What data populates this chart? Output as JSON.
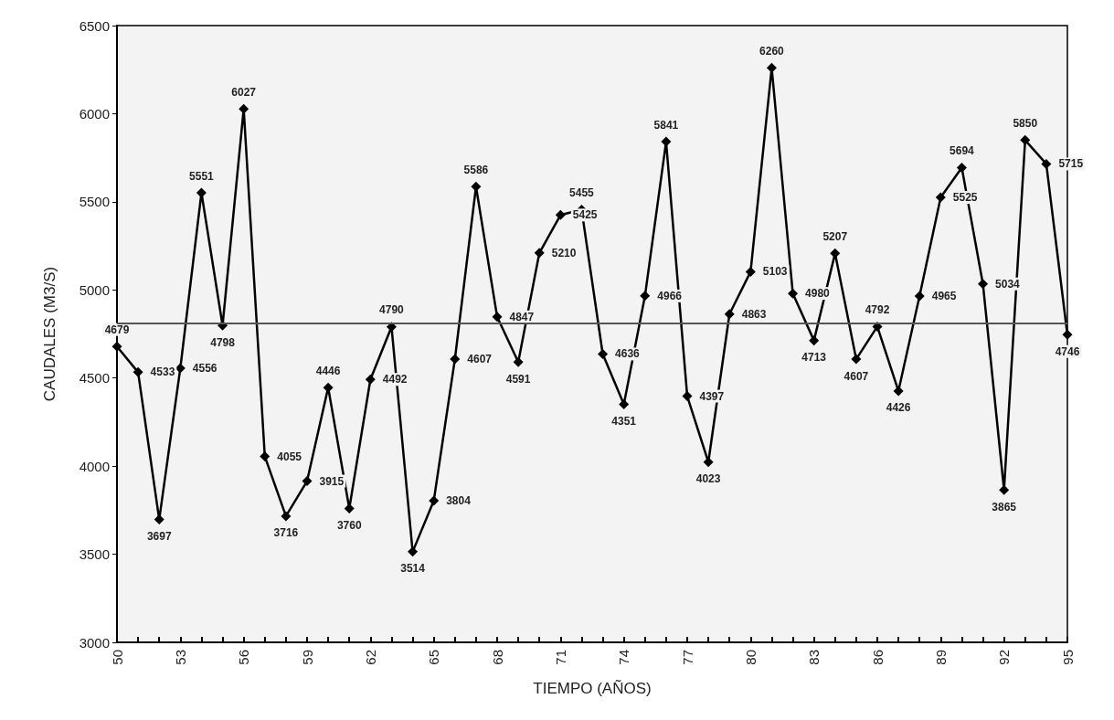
{
  "chart_data": {
    "type": "line",
    "xlabel": "TIEMPO (AÑOS)",
    "ylabel": "CAUDALES (M3/S)",
    "categories": [
      "50",
      null,
      null,
      "53",
      null,
      null,
      "56",
      null,
      null,
      "59",
      null,
      null,
      "62",
      null,
      null,
      "65",
      null,
      null,
      "68",
      null,
      null,
      "71",
      null,
      null,
      "74",
      null,
      null,
      "77",
      null,
      null,
      "80",
      null,
      null,
      "83",
      null,
      null,
      "86",
      null,
      null,
      "89",
      null,
      null,
      "92",
      null,
      null,
      "95"
    ],
    "series": [
      {
        "color": "#000000",
        "values": [
          4679,
          4533,
          3697,
          4556,
          5551,
          4798,
          6027,
          4055,
          3716,
          3915,
          4446,
          3760,
          4492,
          4790,
          3514,
          3804,
          4607,
          5586,
          4847,
          4591,
          5210,
          5425,
          5455,
          4636,
          4351,
          4966,
          5841,
          4397,
          4023,
          4863,
          5103,
          6260,
          4980,
          4713,
          5207,
          4607,
          4792,
          4426,
          4965,
          5525,
          5694,
          5034,
          3865,
          5850,
          5715,
          4746
        ]
      }
    ],
    "ylim": [
      3000,
      6500
    ],
    "yticks": [
      3000,
      3500,
      4000,
      4500,
      5000,
      5500,
      6000,
      6500
    ],
    "ref_lines": [
      {
        "axis": "y",
        "value": 4810,
        "color": "#555555"
      }
    ],
    "marker": "diamond",
    "line_style": "solid",
    "data_labels": true,
    "grid": false
  }
}
